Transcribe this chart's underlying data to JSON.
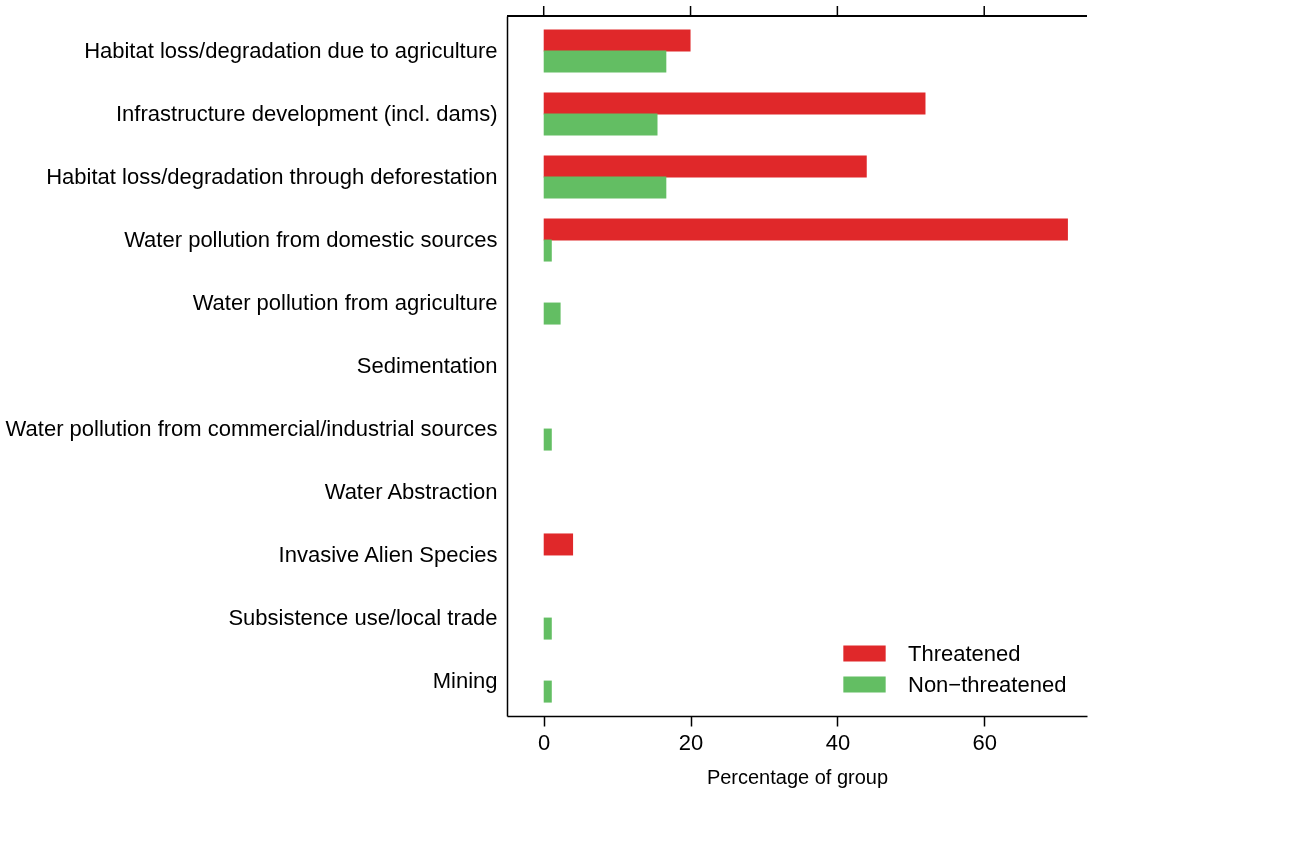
{
  "chart_data": {
    "type": "bar",
    "orientation": "horizontal",
    "xlabel": "Percentage of group",
    "categories": [
      "Habitat loss/degradation due to agriculture",
      "Infrastructure development (incl. dams)",
      "Habitat loss/degradation through deforestation",
      "Water pollution from domestic sources",
      "Water pollution from agriculture",
      "Sedimentation",
      "Water pollution from commercial/industrial sources",
      "Water Abstraction",
      "Invasive Alien Species",
      "Subsistence use/local trade",
      "Mining"
    ],
    "series": [
      {
        "name": "Threatened",
        "color": "#e0282a",
        "values": [
          20,
          52,
          44,
          71.4,
          0,
          0,
          0,
          0,
          4,
          0,
          0
        ]
      },
      {
        "name": "Non−threatened",
        "color": "#63be63",
        "values": [
          16.7,
          15.5,
          16.7,
          1.1,
          2.3,
          0,
          1.1,
          0,
          0,
          1.1,
          1.1
        ]
      }
    ],
    "xlim": [
      -5,
      74
    ],
    "xticks": [
      0,
      20,
      40,
      60
    ],
    "grid": false,
    "legend": "bottom right"
  }
}
